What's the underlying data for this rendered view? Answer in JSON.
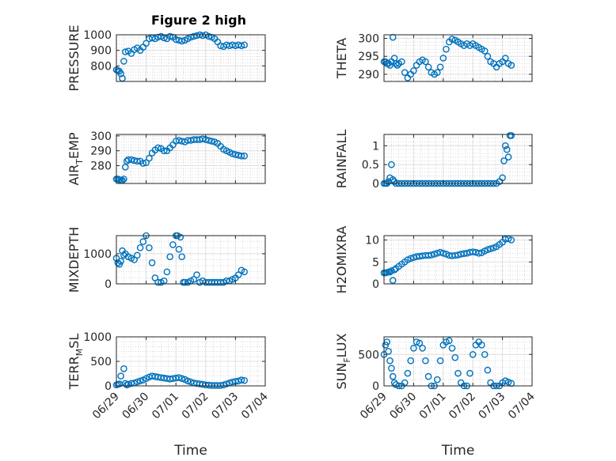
{
  "figure": {
    "title": "Figure 2 high",
    "marker_color": "#0072BD",
    "grid": true,
    "minor_grid": true
  },
  "chart_data": [
    {
      "type": "scatter",
      "ylabel": "PRESSURE",
      "title": "Figure 2 high",
      "xlabel": "",
      "ylim": [
        700,
        1000
      ],
      "yticks": [
        800,
        900,
        1000
      ],
      "xlim": [
        0,
        5
      ],
      "x": [
        0.0,
        0.05,
        0.1,
        0.15,
        0.2,
        0.25,
        0.3,
        0.4,
        0.5,
        0.6,
        0.7,
        0.8,
        0.9,
        1.0,
        1.1,
        1.2,
        1.3,
        1.4,
        1.5,
        1.6,
        1.7,
        1.8,
        1.9,
        2.0,
        2.1,
        2.2,
        2.3,
        2.4,
        2.5,
        2.6,
        2.7,
        2.8,
        2.9,
        3.0,
        3.1,
        3.2,
        3.3,
        3.4,
        3.5,
        3.6,
        3.7,
        3.8,
        3.9,
        4.0,
        4.1,
        4.2,
        4.3
      ],
      "y": [
        775,
        770,
        765,
        750,
        720,
        830,
        890,
        895,
        880,
        905,
        915,
        900,
        920,
        945,
        975,
        980,
        975,
        985,
        990,
        980,
        975,
        990,
        985,
        970,
        965,
        960,
        965,
        975,
        985,
        990,
        995,
        1000,
        995,
        1000,
        990,
        985,
        975,
        955,
        930,
        925,
        935,
        930,
        935,
        930,
        935,
        930,
        935
      ]
    },
    {
      "type": "scatter",
      "ylabel": "THETA",
      "xlabel": "",
      "ylim": [
        288,
        301
      ],
      "yticks": [
        290,
        295,
        300
      ],
      "xlim": [
        0,
        5
      ],
      "x": [
        0.0,
        0.05,
        0.1,
        0.15,
        0.2,
        0.25,
        0.3,
        0.35,
        0.4,
        0.45,
        0.5,
        0.6,
        0.7,
        0.8,
        0.9,
        1.0,
        1.1,
        1.2,
        1.3,
        1.4,
        1.5,
        1.6,
        1.7,
        1.8,
        1.9,
        2.0,
        2.1,
        2.2,
        2.3,
        2.4,
        2.5,
        2.6,
        2.7,
        2.8,
        2.9,
        3.0,
        3.1,
        3.2,
        3.3,
        3.4,
        3.5,
        3.6,
        3.7,
        3.8,
        3.9,
        4.0,
        4.1,
        4.2,
        4.3
      ],
      "y": [
        293.5,
        293.5,
        293,
        293,
        292.5,
        293.5,
        300.3,
        294.5,
        293,
        292.5,
        293,
        293.5,
        290.5,
        289,
        290,
        291,
        292.5,
        293.5,
        294,
        293.5,
        292,
        290.5,
        290,
        290.5,
        292,
        294.5,
        297,
        299,
        299.8,
        299.5,
        299,
        298.5,
        298,
        298.5,
        298,
        298.5,
        298,
        297.5,
        297,
        296.5,
        295,
        293.5,
        293,
        292,
        293,
        293.5,
        294.5,
        293,
        292.5
      ]
    },
    {
      "type": "scatter",
      "ylabel": "AIR_TEMP",
      "xlabel": "",
      "ylim": [
        268,
        301
      ],
      "yticks": [
        280,
        290,
        300
      ],
      "xlim": [
        0,
        5
      ],
      "x": [
        0.0,
        0.05,
        0.1,
        0.15,
        0.2,
        0.25,
        0.3,
        0.35,
        0.4,
        0.5,
        0.6,
        0.7,
        0.8,
        0.9,
        1.0,
        1.1,
        1.2,
        1.3,
        1.4,
        1.5,
        1.6,
        1.7,
        1.8,
        1.9,
        2.0,
        2.1,
        2.2,
        2.3,
        2.4,
        2.5,
        2.6,
        2.7,
        2.8,
        2.9,
        3.0,
        3.1,
        3.2,
        3.3,
        3.4,
        3.5,
        3.6,
        3.7,
        3.8,
        3.9,
        4.0,
        4.1,
        4.2,
        4.3
      ],
      "y": [
        271,
        271,
        270.5,
        270,
        270,
        271,
        279,
        283,
        284,
        284,
        283.5,
        283,
        283,
        281.5,
        282,
        285,
        288.5,
        290.5,
        292,
        291.5,
        290,
        290,
        292,
        294,
        296.5,
        297,
        296.5,
        296,
        297,
        297,
        297.5,
        297.5,
        297.5,
        298,
        297.5,
        297,
        296.5,
        296,
        295,
        293,
        291,
        290,
        289,
        288,
        287.5,
        287,
        286.5,
        286.5
      ]
    },
    {
      "type": "scatter",
      "ylabel": "RAINFALL",
      "xlabel": "",
      "ylim": [
        0,
        1.3
      ],
      "yticks": [
        0,
        0.5,
        1
      ],
      "ytick_labels": [
        "0",
        "0.5",
        "1"
      ],
      "xlim": [
        0,
        5
      ],
      "x": [
        0.0,
        0.05,
        0.1,
        0.15,
        0.2,
        0.25,
        0.3,
        0.35,
        0.4,
        0.5,
        0.6,
        0.7,
        0.8,
        0.9,
        1.0,
        1.1,
        1.2,
        1.3,
        1.4,
        1.5,
        1.6,
        1.7,
        1.8,
        1.9,
        2.0,
        2.1,
        2.2,
        2.3,
        2.4,
        2.5,
        2.6,
        2.7,
        2.8,
        2.9,
        3.0,
        3.1,
        3.2,
        3.3,
        3.4,
        3.5,
        3.6,
        3.7,
        3.8,
        3.9,
        4.0,
        4.05,
        4.1,
        4.15,
        4.2,
        4.25,
        4.3
      ],
      "y": [
        0,
        0,
        0,
        0.05,
        0.15,
        0.5,
        0.1,
        0.05,
        0,
        0,
        0,
        0,
        0,
        0,
        0,
        0,
        0,
        0,
        0,
        0,
        0,
        0,
        0,
        0,
        0,
        0,
        0,
        0,
        0,
        0,
        0,
        0,
        0,
        0,
        0,
        0,
        0,
        0,
        0,
        0,
        0,
        0,
        0,
        0.05,
        0.15,
        0.6,
        1.0,
        0.9,
        0.7,
        1.27,
        1.27
      ]
    },
    {
      "type": "scatter",
      "ylabel": "MIXDEPTH",
      "xlabel": "",
      "ylim": [
        0,
        1600
      ],
      "yticks": [
        0,
        1000
      ],
      "xlim": [
        0,
        5
      ],
      "x": [
        0.0,
        0.05,
        0.1,
        0.15,
        0.2,
        0.25,
        0.3,
        0.4,
        0.5,
        0.6,
        0.7,
        0.8,
        0.9,
        1.0,
        1.1,
        1.2,
        1.3,
        1.4,
        1.5,
        1.6,
        1.7,
        1.8,
        1.9,
        2.0,
        2.05,
        2.1,
        2.15,
        2.2,
        2.25,
        2.3,
        2.4,
        2.5,
        2.6,
        2.7,
        2.8,
        2.9,
        3.0,
        3.1,
        3.2,
        3.3,
        3.4,
        3.5,
        3.6,
        3.7,
        3.8,
        3.9,
        4.0,
        4.1,
        4.2,
        4.3
      ],
      "y": [
        850,
        700,
        650,
        750,
        1100,
        950,
        1000,
        900,
        850,
        800,
        950,
        1200,
        1400,
        1600,
        1200,
        700,
        200,
        50,
        50,
        100,
        400,
        900,
        1300,
        1600,
        1600,
        1150,
        1550,
        900,
        50,
        50,
        50,
        100,
        150,
        300,
        50,
        100,
        50,
        50,
        50,
        50,
        50,
        50,
        50,
        100,
        100,
        150,
        200,
        300,
        450,
        400
      ]
    },
    {
      "type": "scatter",
      "ylabel": "H2OMIXRA",
      "xlabel": "",
      "ylim": [
        0,
        11
      ],
      "yticks": [
        0,
        5,
        10
      ],
      "xlim": [
        0,
        5
      ],
      "x": [
        0.0,
        0.05,
        0.1,
        0.15,
        0.2,
        0.25,
        0.3,
        0.35,
        0.4,
        0.5,
        0.6,
        0.7,
        0.8,
        0.9,
        1.0,
        1.1,
        1.2,
        1.3,
        1.4,
        1.5,
        1.6,
        1.7,
        1.8,
        1.9,
        2.0,
        2.1,
        2.2,
        2.3,
        2.4,
        2.5,
        2.6,
        2.7,
        2.8,
        2.9,
        3.0,
        3.1,
        3.2,
        3.3,
        3.4,
        3.5,
        3.6,
        3.7,
        3.8,
        3.9,
        4.0,
        4.1,
        4.2,
        4.3
      ],
      "y": [
        2.5,
        2.5,
        2.6,
        2.7,
        2.7,
        3,
        0.8,
        3.2,
        3.5,
        4,
        4.5,
        5,
        5.5,
        5.8,
        6,
        6.2,
        6.3,
        6.4,
        6.5,
        6.5,
        6.6,
        6.8,
        7,
        7.2,
        7,
        6.8,
        6.5,
        6.4,
        6.5,
        6.6,
        6.8,
        6.9,
        7,
        7.2,
        7.3,
        7.2,
        7,
        7.1,
        7.5,
        7.8,
        8,
        8.2,
        8.5,
        9,
        9.5,
        10.2,
        10.3,
        10
      ]
    },
    {
      "type": "scatter",
      "ylabel": "TERR_MSL",
      "xlabel": "Time",
      "ylim": [
        0,
        1000
      ],
      "yticks": [
        0,
        500,
        1000
      ],
      "xlim": [
        0,
        5
      ],
      "xticks": [
        0,
        1,
        2,
        3,
        4,
        5
      ],
      "xtick_labels": [
        "06/29",
        "06/30",
        "07/01",
        "07/02",
        "07/03",
        "07/04"
      ],
      "x": [
        0.0,
        0.05,
        0.1,
        0.15,
        0.2,
        0.25,
        0.3,
        0.35,
        0.4,
        0.5,
        0.6,
        0.7,
        0.8,
        0.9,
        1.0,
        1.1,
        1.2,
        1.3,
        1.4,
        1.5,
        1.6,
        1.7,
        1.8,
        1.9,
        2.0,
        2.1,
        2.2,
        2.3,
        2.4,
        2.5,
        2.6,
        2.7,
        2.8,
        2.9,
        3.0,
        3.1,
        3.2,
        3.3,
        3.4,
        3.5,
        3.6,
        3.7,
        3.8,
        3.9,
        4.0,
        4.1,
        4.2,
        4.3
      ],
      "y": [
        20,
        30,
        40,
        200,
        1010,
        350,
        50,
        20,
        30,
        50,
        60,
        80,
        100,
        120,
        150,
        180,
        200,
        190,
        180,
        170,
        160,
        150,
        140,
        150,
        160,
        170,
        150,
        130,
        100,
        80,
        60,
        50,
        40,
        30,
        20,
        15,
        10,
        10,
        10,
        10,
        20,
        40,
        60,
        80,
        90,
        100,
        120,
        110
      ]
    },
    {
      "type": "scatter",
      "ylabel": "SUN_FLUX",
      "xlabel": "Time",
      "ylim": [
        0,
        780
      ],
      "yticks": [
        0,
        500
      ],
      "xlim": [
        0,
        5
      ],
      "xticks": [
        0,
        1,
        2,
        3,
        4,
        5
      ],
      "xtick_labels": [
        "06/29",
        "06/30",
        "07/01",
        "07/02",
        "07/03",
        "07/04"
      ],
      "x": [
        0.0,
        0.05,
        0.1,
        0.15,
        0.2,
        0.25,
        0.3,
        0.35,
        0.4,
        0.5,
        0.6,
        0.7,
        0.8,
        0.9,
        1.0,
        1.1,
        1.2,
        1.3,
        1.4,
        1.5,
        1.6,
        1.7,
        1.8,
        1.9,
        2.0,
        2.1,
        2.2,
        2.3,
        2.4,
        2.5,
        2.6,
        2.7,
        2.8,
        2.9,
        3.0,
        3.1,
        3.2,
        3.3,
        3.4,
        3.5,
        3.6,
        3.7,
        3.8,
        3.9,
        4.0,
        4.1,
        4.2,
        4.3
      ],
      "y": [
        500,
        650,
        700,
        550,
        400,
        280,
        150,
        50,
        20,
        0,
        0,
        50,
        200,
        400,
        600,
        700,
        680,
        600,
        400,
        150,
        0,
        0,
        100,
        400,
        650,
        700,
        720,
        600,
        450,
        200,
        50,
        0,
        0,
        200,
        500,
        650,
        700,
        650,
        500,
        250,
        50,
        0,
        0,
        0,
        50,
        80,
        60,
        40
      ]
    }
  ]
}
